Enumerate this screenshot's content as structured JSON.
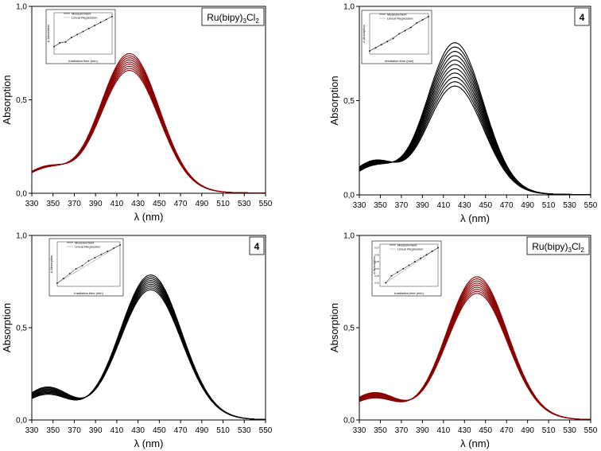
{
  "colors": {
    "red": "#8b0000",
    "black": "#000000"
  },
  "chart_data": [
    {
      "type": "line",
      "label": "Ru(bipy)3Cl2",
      "label_main": "Ru(bipy)",
      "label_sub1": "3",
      "label_mid": "Cl",
      "label_sub2": "2",
      "label_bold": false,
      "color": "red",
      "xlabel": "λ (nm)",
      "ylabel": "Absorption",
      "xlim": [
        330,
        550
      ],
      "ylim": [
        0,
        1
      ],
      "x_ticks": [
        "330",
        "350",
        "370",
        "390",
        "410",
        "430",
        "450",
        "470",
        "490",
        "510",
        "530",
        "550"
      ],
      "y_ticks": [
        "0,0",
        "0,5",
        "1,0"
      ],
      "peak_x": 422,
      "sigma": 28,
      "peak_range": [
        0.65,
        0.74
      ],
      "base_left": [
        0.11,
        0.12
      ],
      "n_curves": 9,
      "inset": {
        "legend": [
          "Measurement",
          "Linear Regression"
        ],
        "xlabel": "Irradiation time (min)",
        "ylabel": "Δ Absorption",
        "x": [
          0,
          1,
          2,
          3,
          4,
          5,
          6,
          7,
          8,
          9,
          10
        ],
        "y": [
          0.01,
          0.015,
          0.016,
          0.022,
          0.026,
          0.03,
          0.034,
          0.038,
          0.042,
          0.046,
          0.05
        ],
        "ylim": [
          0.0,
          0.055
        ]
      }
    },
    {
      "type": "line",
      "label": "4",
      "label_main": "4",
      "label_sub1": "",
      "label_mid": "",
      "label_sub2": "",
      "label_bold": true,
      "color": "black",
      "xlabel": "λ (nm)",
      "ylabel": "Absorption",
      "xlim": [
        330,
        550
      ],
      "ylim": [
        0,
        1
      ],
      "x_ticks": [
        "330",
        "350",
        "370",
        "390",
        "410",
        "430",
        "450",
        "470",
        "490",
        "510",
        "530",
        "550"
      ],
      "y_ticks": [
        "0,0",
        "0,5",
        "1,0"
      ],
      "peak_x": 421,
      "sigma": 27,
      "peak_range": [
        0.57,
        0.8
      ],
      "base_left": [
        0.13,
        0.16
      ],
      "n_curves": 11,
      "inset": {
        "legend": [
          "Measurement",
          "Linear Regression"
        ],
        "xlabel": "Irradiation time (min)",
        "ylabel": "Δ Absorption",
        "x": [
          0,
          1,
          2,
          3,
          4,
          5,
          6,
          7,
          8,
          9,
          10
        ],
        "y": [
          0.02,
          0.04,
          0.06,
          0.08,
          0.1,
          0.13,
          0.15,
          0.17,
          0.2,
          0.22,
          0.24
        ],
        "ylim": [
          0.0,
          0.26
        ]
      }
    },
    {
      "type": "line",
      "label": "4",
      "label_main": "4",
      "label_sub1": "",
      "label_mid": "",
      "label_sub2": "",
      "label_bold": true,
      "color": "black",
      "xlabel": "λ (nm)",
      "ylabel": "Absorption",
      "xlim": [
        330,
        550
      ],
      "ylim": [
        0,
        1
      ],
      "x_ticks": [
        "330",
        "350",
        "370",
        "390",
        "410",
        "430",
        "450",
        "470",
        "490",
        "510",
        "530",
        "550"
      ],
      "y_ticks": [
        "0,0",
        "0,5",
        "1,0"
      ],
      "peak_x": 442,
      "sigma": 29,
      "peak_range": [
        0.7,
        0.78
      ],
      "base_left": [
        0.12,
        0.16
      ],
      "n_curves": 9,
      "inset": {
        "legend": [
          "Measurement",
          "Linear Regression"
        ],
        "xlabel": "Irradiation time (min)",
        "ylabel": "Δ Absorption",
        "x": [
          0,
          1,
          2,
          3,
          4,
          5,
          6,
          7,
          8,
          9,
          10
        ],
        "y": [
          0.02,
          0.05,
          0.08,
          0.11,
          0.13,
          0.16,
          0.18,
          0.2,
          0.22,
          0.24,
          0.26
        ],
        "ylim": [
          0.0,
          0.28
        ]
      }
    },
    {
      "type": "line",
      "label": "Ru(bipy)3Cl2",
      "label_main": "Ru(bipy)",
      "label_sub1": "3",
      "label_mid": "Cl",
      "label_sub2": "2",
      "label_bold": false,
      "color": "red",
      "xlabel": "λ (nm)",
      "ylabel": "Absorption",
      "xlim": [
        330,
        550
      ],
      "ylim": [
        0,
        1
      ],
      "x_ticks": [
        "330",
        "350",
        "370",
        "390",
        "410",
        "430",
        "450",
        "470",
        "490",
        "510",
        "530",
        "550"
      ],
      "y_ticks": [
        "0,0",
        "0,5",
        "1,0"
      ],
      "peak_x": 442,
      "sigma": 29,
      "peak_range": [
        0.68,
        0.77
      ],
      "base_left": [
        0.1,
        0.13
      ],
      "n_curves": 9,
      "inset": {
        "legend": [
          "Measurement",
          "Linear Regression"
        ],
        "xlabel": "Irradiation time (min)",
        "ylabel": "Δ Absorption",
        "x": [
          1,
          2,
          3,
          4,
          5,
          6,
          7,
          8,
          9,
          10
        ],
        "y_ticks": [
          "0,02",
          "0,03",
          "0,04",
          "0,05",
          "0,06",
          "0,07"
        ],
        "y": [
          0.02,
          0.03,
          0.035,
          0.04,
          0.045,
          0.05,
          0.055,
          0.06,
          0.065,
          0.07
        ],
        "ylim": [
          0.015,
          0.075
        ]
      }
    }
  ]
}
